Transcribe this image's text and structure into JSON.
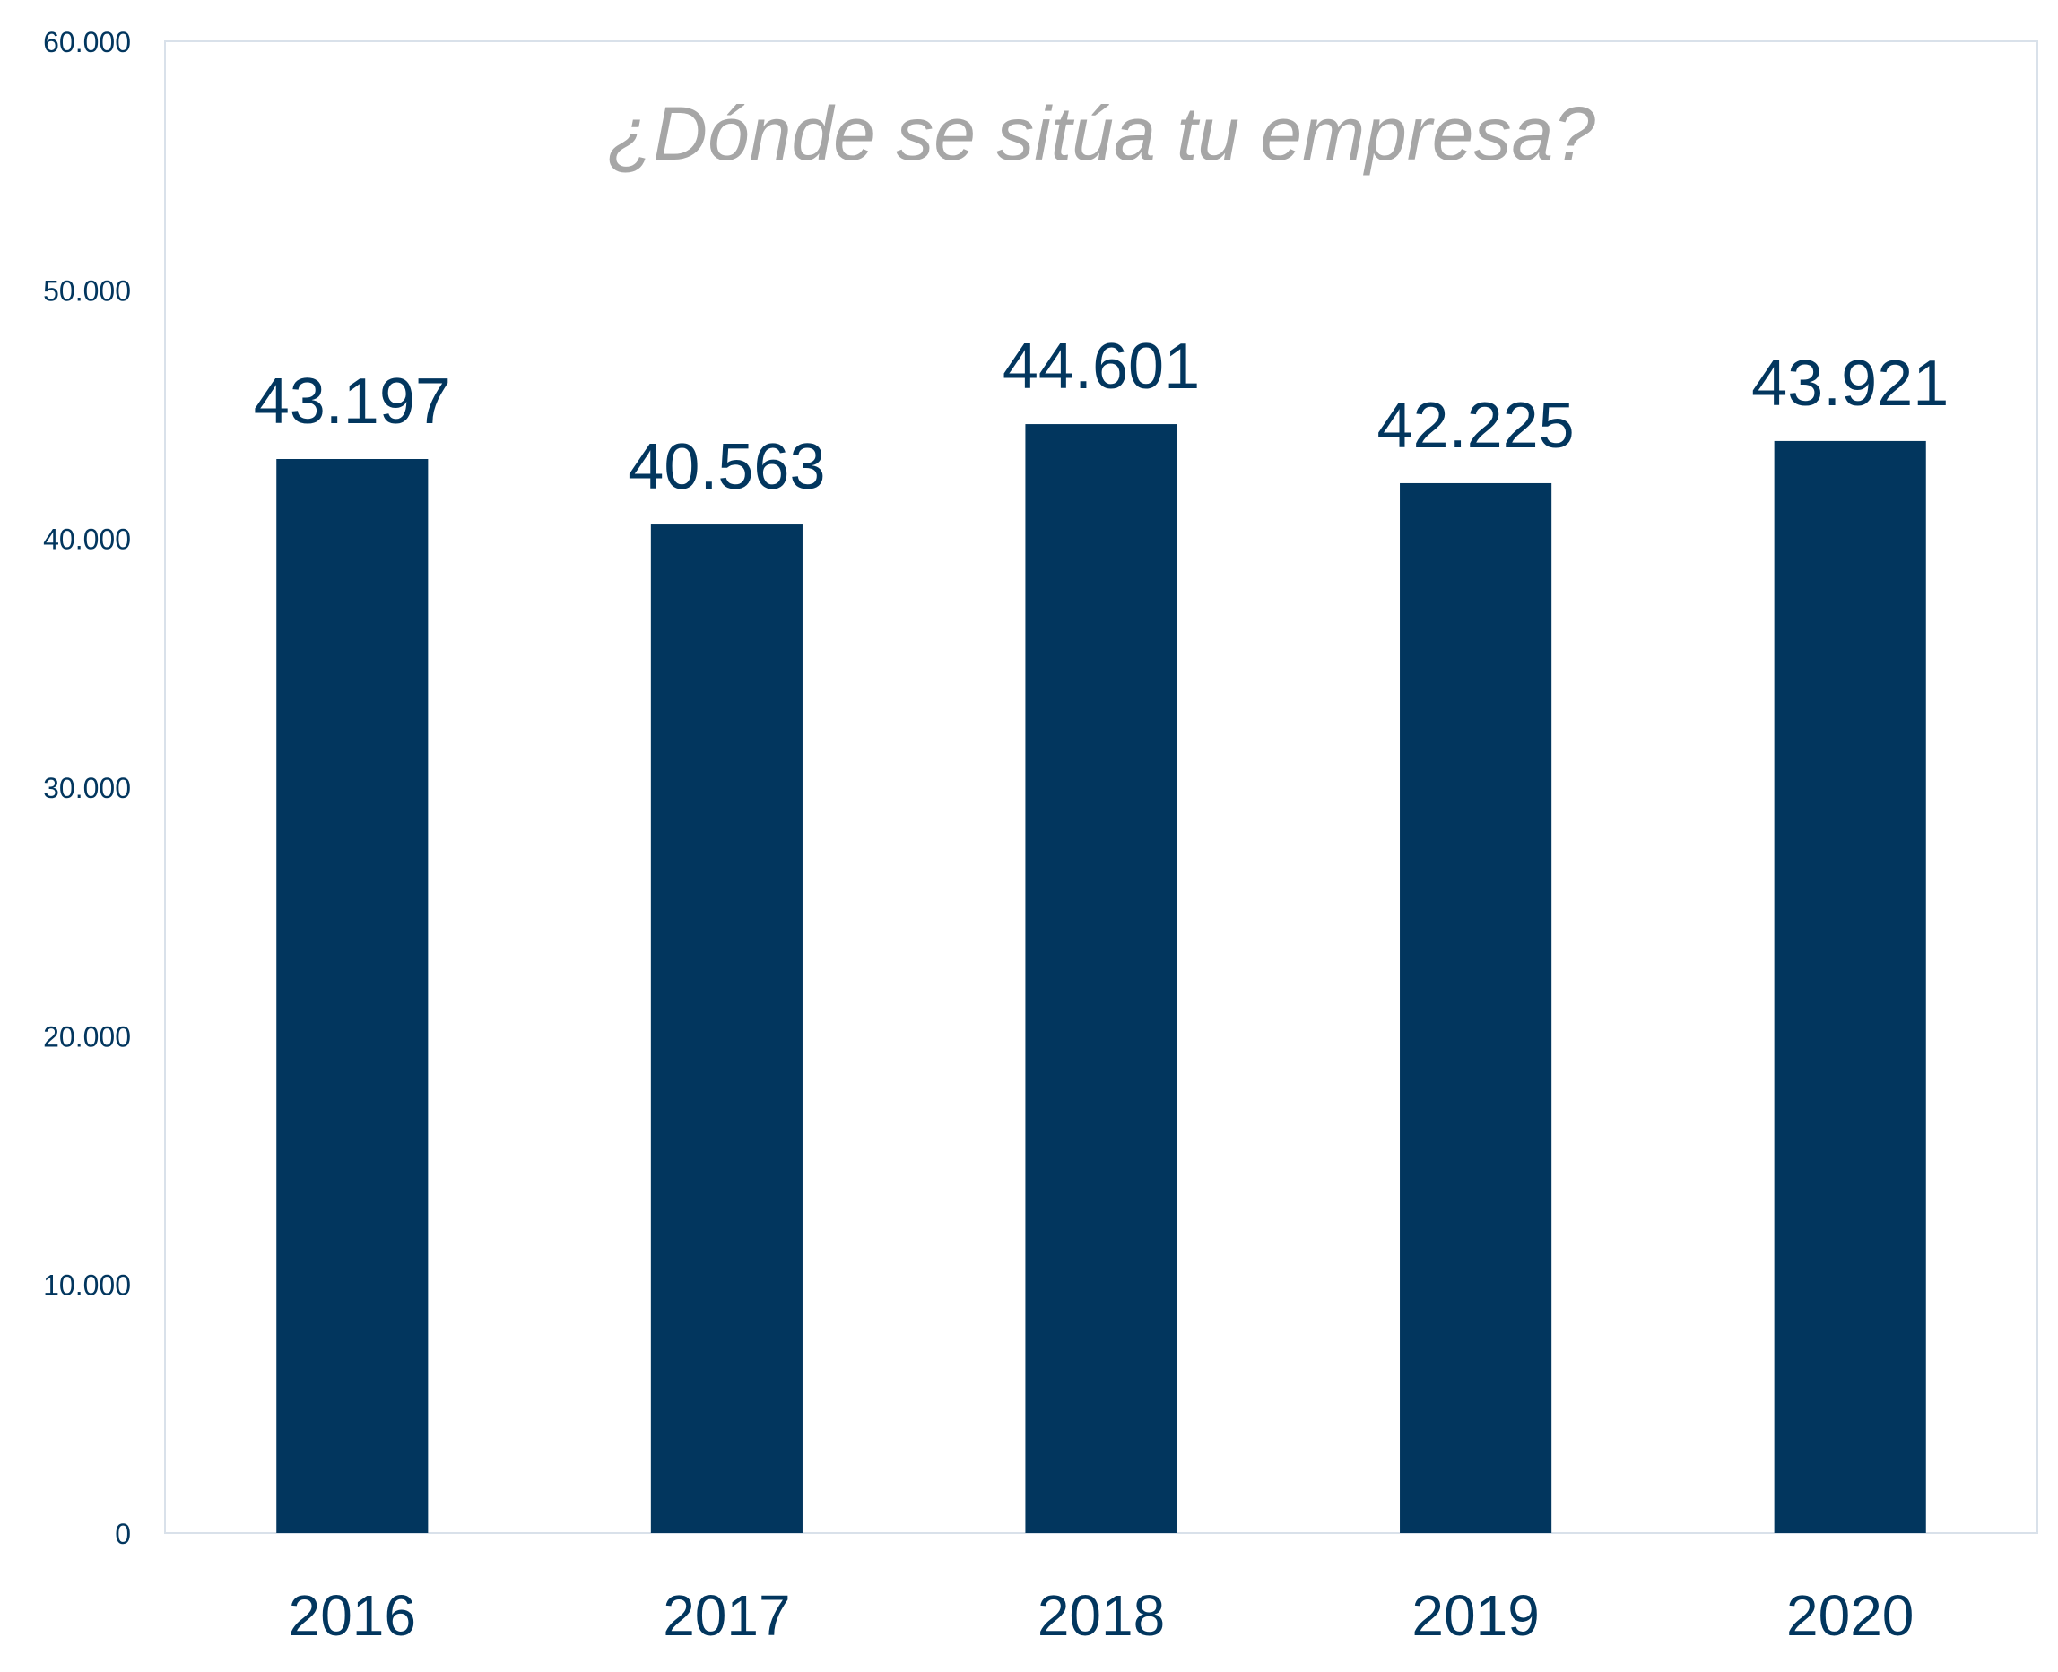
{
  "chart_data": {
    "type": "bar",
    "title": "¿Dónde se sitúa tu empresa?",
    "xlabel": "",
    "ylabel": "",
    "categories": [
      "2016",
      "2017",
      "2018",
      "2019",
      "2020"
    ],
    "values": [
      43197,
      40563,
      44601,
      42225,
      43921
    ],
    "value_labels": [
      "43.197",
      "40.563",
      "44.601",
      "42.225",
      "43.921"
    ],
    "ylim": [
      0,
      60000
    ],
    "yticks": [
      0,
      10000,
      20000,
      30000,
      40000,
      50000,
      60000
    ],
    "ytick_labels": [
      "0",
      "10.000",
      "20.000",
      "30.000",
      "40.000",
      "50.000",
      "60.000"
    ],
    "grid": false,
    "legend": "none",
    "colors": {
      "bar": "#02365E",
      "text": "#02365E",
      "title": "#A6A6A6",
      "frame": "#D9E1EA"
    }
  }
}
